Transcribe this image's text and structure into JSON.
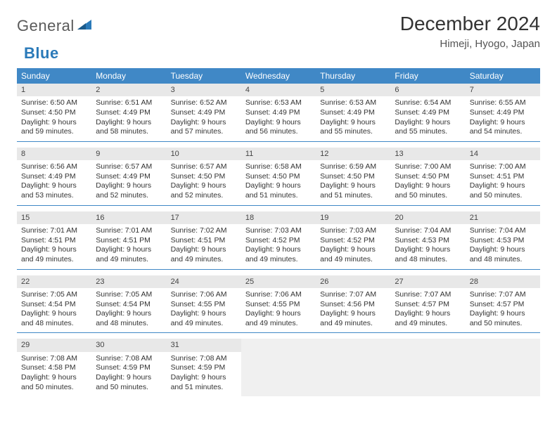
{
  "brand": {
    "part1": "General",
    "part2": "Blue"
  },
  "title": "December 2024",
  "location": "Himeji, Hyogo, Japan",
  "colors": {
    "header_bg": "#4088c6",
    "header_fg": "#ffffff",
    "daynum_bg": "#e8e8e8",
    "rule": "#4088c6",
    "text": "#333333",
    "empty_bg": "#f0f0f0"
  },
  "dayNames": [
    "Sunday",
    "Monday",
    "Tuesday",
    "Wednesday",
    "Thursday",
    "Friday",
    "Saturday"
  ],
  "weeks": [
    [
      {
        "n": "1",
        "sr": "6:50 AM",
        "ss": "4:50 PM",
        "dl": "9 hours and 59 minutes."
      },
      {
        "n": "2",
        "sr": "6:51 AM",
        "ss": "4:49 PM",
        "dl": "9 hours and 58 minutes."
      },
      {
        "n": "3",
        "sr": "6:52 AM",
        "ss": "4:49 PM",
        "dl": "9 hours and 57 minutes."
      },
      {
        "n": "4",
        "sr": "6:53 AM",
        "ss": "4:49 PM",
        "dl": "9 hours and 56 minutes."
      },
      {
        "n": "5",
        "sr": "6:53 AM",
        "ss": "4:49 PM",
        "dl": "9 hours and 55 minutes."
      },
      {
        "n": "6",
        "sr": "6:54 AM",
        "ss": "4:49 PM",
        "dl": "9 hours and 55 minutes."
      },
      {
        "n": "7",
        "sr": "6:55 AM",
        "ss": "4:49 PM",
        "dl": "9 hours and 54 minutes."
      }
    ],
    [
      {
        "n": "8",
        "sr": "6:56 AM",
        "ss": "4:49 PM",
        "dl": "9 hours and 53 minutes."
      },
      {
        "n": "9",
        "sr": "6:57 AM",
        "ss": "4:49 PM",
        "dl": "9 hours and 52 minutes."
      },
      {
        "n": "10",
        "sr": "6:57 AM",
        "ss": "4:50 PM",
        "dl": "9 hours and 52 minutes."
      },
      {
        "n": "11",
        "sr": "6:58 AM",
        "ss": "4:50 PM",
        "dl": "9 hours and 51 minutes."
      },
      {
        "n": "12",
        "sr": "6:59 AM",
        "ss": "4:50 PM",
        "dl": "9 hours and 51 minutes."
      },
      {
        "n": "13",
        "sr": "7:00 AM",
        "ss": "4:50 PM",
        "dl": "9 hours and 50 minutes."
      },
      {
        "n": "14",
        "sr": "7:00 AM",
        "ss": "4:51 PM",
        "dl": "9 hours and 50 minutes."
      }
    ],
    [
      {
        "n": "15",
        "sr": "7:01 AM",
        "ss": "4:51 PM",
        "dl": "9 hours and 49 minutes."
      },
      {
        "n": "16",
        "sr": "7:01 AM",
        "ss": "4:51 PM",
        "dl": "9 hours and 49 minutes."
      },
      {
        "n": "17",
        "sr": "7:02 AM",
        "ss": "4:51 PM",
        "dl": "9 hours and 49 minutes."
      },
      {
        "n": "18",
        "sr": "7:03 AM",
        "ss": "4:52 PM",
        "dl": "9 hours and 49 minutes."
      },
      {
        "n": "19",
        "sr": "7:03 AM",
        "ss": "4:52 PM",
        "dl": "9 hours and 49 minutes."
      },
      {
        "n": "20",
        "sr": "7:04 AM",
        "ss": "4:53 PM",
        "dl": "9 hours and 48 minutes."
      },
      {
        "n": "21",
        "sr": "7:04 AM",
        "ss": "4:53 PM",
        "dl": "9 hours and 48 minutes."
      }
    ],
    [
      {
        "n": "22",
        "sr": "7:05 AM",
        "ss": "4:54 PM",
        "dl": "9 hours and 48 minutes."
      },
      {
        "n": "23",
        "sr": "7:05 AM",
        "ss": "4:54 PM",
        "dl": "9 hours and 48 minutes."
      },
      {
        "n": "24",
        "sr": "7:06 AM",
        "ss": "4:55 PM",
        "dl": "9 hours and 49 minutes."
      },
      {
        "n": "25",
        "sr": "7:06 AM",
        "ss": "4:55 PM",
        "dl": "9 hours and 49 minutes."
      },
      {
        "n": "26",
        "sr": "7:07 AM",
        "ss": "4:56 PM",
        "dl": "9 hours and 49 minutes."
      },
      {
        "n": "27",
        "sr": "7:07 AM",
        "ss": "4:57 PM",
        "dl": "9 hours and 49 minutes."
      },
      {
        "n": "28",
        "sr": "7:07 AM",
        "ss": "4:57 PM",
        "dl": "9 hours and 50 minutes."
      }
    ],
    [
      {
        "n": "29",
        "sr": "7:08 AM",
        "ss": "4:58 PM",
        "dl": "9 hours and 50 minutes."
      },
      {
        "n": "30",
        "sr": "7:08 AM",
        "ss": "4:59 PM",
        "dl": "9 hours and 50 minutes."
      },
      {
        "n": "31",
        "sr": "7:08 AM",
        "ss": "4:59 PM",
        "dl": "9 hours and 51 minutes."
      },
      null,
      null,
      null,
      null
    ]
  ],
  "labels": {
    "sunrise": "Sunrise:",
    "sunset": "Sunset:",
    "daylight": "Daylight:"
  }
}
